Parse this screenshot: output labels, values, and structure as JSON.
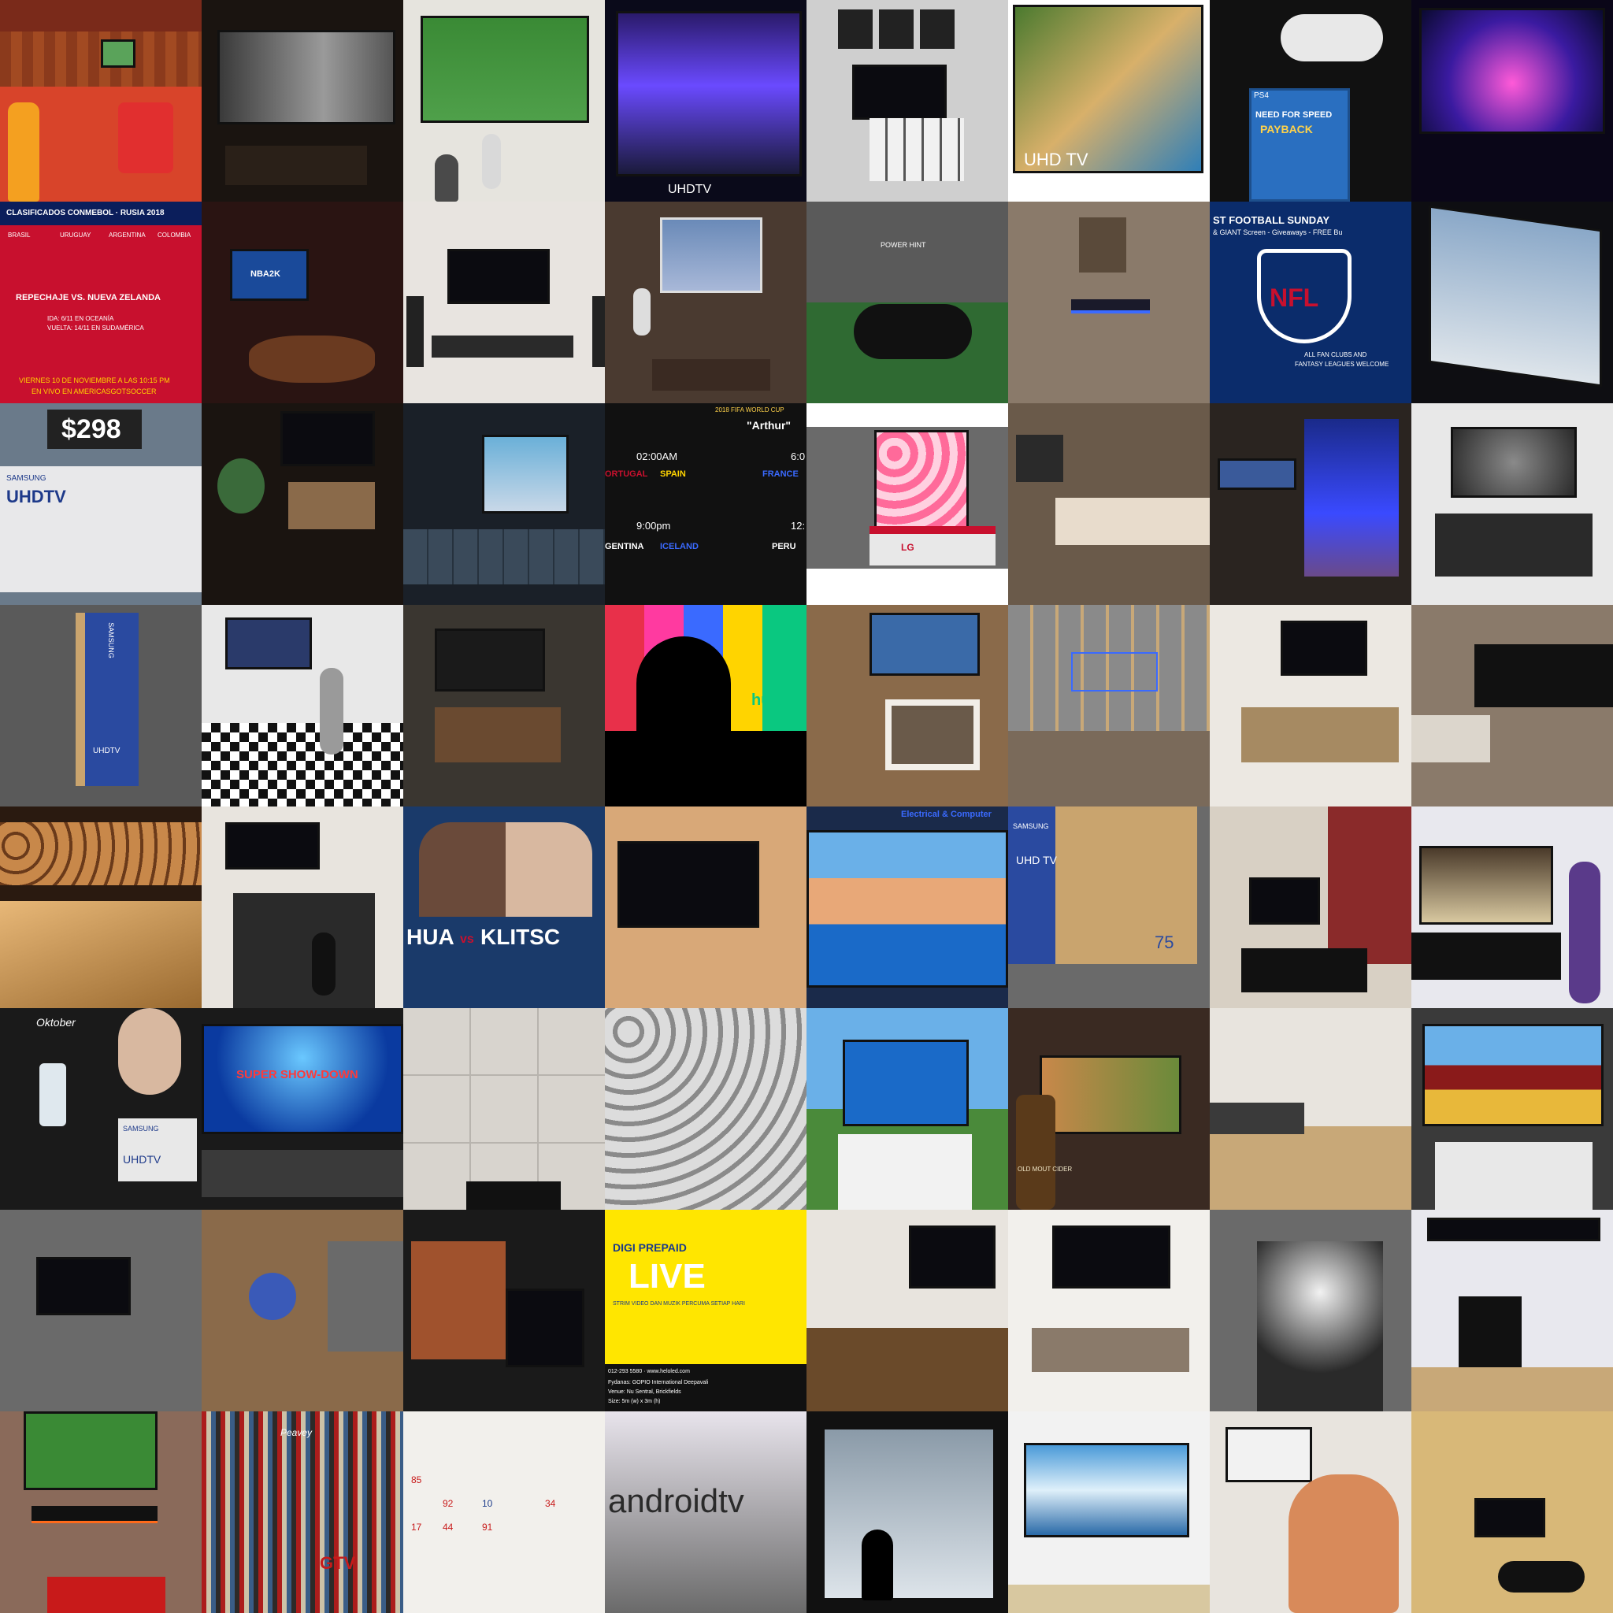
{
  "collage": {
    "r0": {
      "uhdtv_brand": "UHDTV",
      "uhdtv_caption": "UHD TV",
      "need_for_speed": "NEED FOR SPEED",
      "payback": "PAYBACK",
      "ps4": "PS4"
    },
    "r1": {
      "conmebol_title": "CLASIFICADOS CONMEBOL · RUSIA 2018",
      "countries": [
        "BRASIL",
        "URUGUAY",
        "ARGENTINA",
        "COLOMBIA"
      ],
      "repechaje": "REPECHAJE VS. NUEVA ZELANDA",
      "ida": "IDA: 6/11 EN OCEANÍA",
      "vuelta": "VUELTA: 14/11 EN SUDAMÉRICA",
      "viernes": "VIERNES 10 DE NOVIEMBRE A LAS 10:15 PM",
      "en_vivo": "EN VIVO EN AMERICASGOTSOCCER",
      "nba": "NBA2K",
      "power_hint": "POWER HINT",
      "football_sunday": "ST FOOTBALL SUNDAY",
      "giant_screen": "& GIANT Screen - Giveaways - FREE Bu",
      "nfl": "NFL",
      "fan_clubs": "ALL FAN CLUBS AND",
      "fantasy": "FANTASY LEAGUES WELCOME"
    },
    "r2": {
      "price": "$298",
      "samsung": "SAMSUNG",
      "uhdtv": "UHDTV",
      "fifa": "2018 FIFA WORLD CUP",
      "arthur": "\"Arthur\"",
      "time1": "02:00AM",
      "time1b": "6:0",
      "portugal": "ORTUGAL",
      "spain": "SPAIN",
      "france": "FRANCE",
      "time2": "9:00pm",
      "time2b": "12:",
      "argentina": "GENTINA",
      "iceland": "ICELAND",
      "peru": "PERU",
      "lg": "LG"
    },
    "r3": {
      "samsung": "SAMSUNG",
      "uhdtv": "UHDTV",
      "hulu": "hulu"
    },
    "r4": {
      "fight_a": "HUA",
      "vs": "vs",
      "fight_b": "KLITSC",
      "store_sign": "Electrical & Computer",
      "samsung": "SAMSUNG",
      "uhdtv": "UHD TV",
      "size": "75"
    },
    "r5": {
      "oktober": "Oktober",
      "samsung": "SAMSUNG",
      "uhdtv": "UHDTV",
      "supershow": "SUPER SHOW-DOWN",
      "cider": "OLD MOUT CIDER"
    },
    "r6": {
      "digi": "DIGI PREPAID",
      "live": "LIVE",
      "digi_sub": "STRIM VIDEO DAN MUZIK PERCUMA SETIAP HARI",
      "phone": "012-293 5580 · www.heloled.com",
      "event": "Fydanas: GOPIO International Deepavali",
      "venue": "Venue: Nu Sentral, Brickfields",
      "size": "Size: 5m (w) x 3m (h)"
    },
    "r7": {
      "peavey": "Peavey",
      "gtv": "GTV",
      "jersey_nums": [
        "85",
        "92",
        "10",
        "44",
        "91",
        "17",
        "34"
      ],
      "android": "androidtv"
    }
  },
  "palette": {
    "tv_bezel": "#111111",
    "conmebol_red": "#c8102e",
    "samsung_blue": "#1e3a8a",
    "box_tan": "#c9a46e",
    "nfl_navy": "#0b2c6b"
  }
}
